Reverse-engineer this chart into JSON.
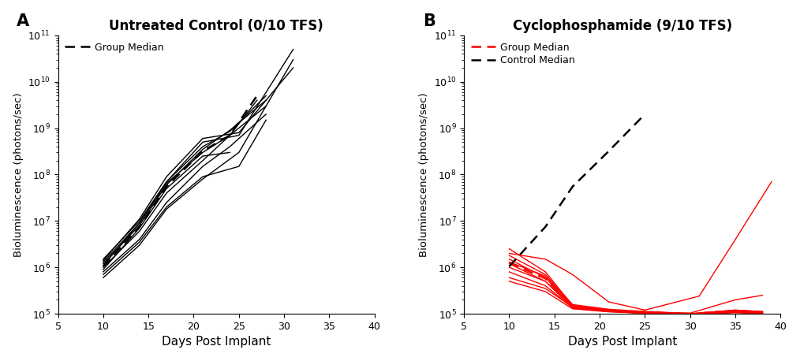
{
  "title_A": "Untreated Control (0/10 TFS)",
  "title_B": "Cyclophosphamide (9/10 TFS)",
  "xlabel": "Days Post Implant",
  "ylabel": "Bioluminescence (photons/sec)",
  "xlim": [
    5,
    40
  ],
  "ylim_log": [
    5,
    11
  ],
  "label_A": "A",
  "label_B": "B",
  "untreated_mice": [
    {
      "x": [
        10,
        14,
        17,
        21,
        24,
        28
      ],
      "y": [
        1200000,
        8000000,
        60000000,
        350000000,
        900000000,
        4000000000
      ]
    },
    {
      "x": [
        10,
        14,
        17,
        21,
        24,
        28
      ],
      "y": [
        1000000,
        6000000,
        40000000,
        200000000,
        700000000,
        3000000000
      ]
    },
    {
      "x": [
        10,
        14,
        17,
        21,
        24,
        28
      ],
      "y": [
        800000,
        4000000,
        25000000,
        150000000,
        400000000,
        2000000000
      ]
    },
    {
      "x": [
        10,
        14,
        17,
        21,
        24,
        28
      ],
      "y": [
        1500000,
        10000000,
        70000000,
        400000000,
        850000000,
        5000000000
      ]
    },
    {
      "x": [
        10,
        14,
        17,
        21,
        24
      ],
      "y": [
        900000,
        7000000,
        50000000,
        250000000,
        300000000
      ]
    },
    {
      "x": [
        10,
        14,
        17,
        21,
        24,
        27
      ],
      "y": [
        1300000,
        9000000,
        65000000,
        300000000,
        700000000,
        4000000000
      ]
    },
    {
      "x": [
        10,
        14,
        17,
        21,
        25,
        28
      ],
      "y": [
        700000,
        3500000,
        20000000,
        90000000,
        150000000,
        1500000000
      ]
    },
    {
      "x": [
        10,
        14,
        17,
        21,
        25,
        31
      ],
      "y": [
        600000,
        3000000,
        18000000,
        80000000,
        300000000,
        30000000000
      ]
    },
    {
      "x": [
        10,
        14,
        17,
        21,
        25,
        31
      ],
      "y": [
        1100000,
        9000000,
        70000000,
        500000000,
        700000000,
        50000000000
      ]
    },
    {
      "x": [
        10,
        14,
        17,
        21,
        25,
        31
      ],
      "y": [
        1400000,
        11000000,
        90000000,
        600000000,
        800000000,
        20000000000
      ]
    }
  ],
  "untreated_median": {
    "x": [
      10,
      14,
      17,
      21,
      24,
      27
    ],
    "y": [
      1050000,
      7500000,
      55000000,
      320000000,
      700000000,
      5000000000
    ]
  },
  "cyc_mice": [
    {
      "x": [
        10,
        14,
        17,
        21,
        25,
        30,
        35,
        38
      ],
      "y": [
        2500000,
        800000,
        150000,
        120000,
        110000,
        100000,
        120000,
        110000
      ]
    },
    {
      "x": [
        10,
        14,
        17,
        21,
        25,
        30,
        35,
        38
      ],
      "y": [
        1500000,
        600000,
        140000,
        115000,
        105000,
        98000,
        110000,
        105000
      ]
    },
    {
      "x": [
        10,
        14,
        17,
        21,
        25,
        30,
        35,
        38
      ],
      "y": [
        1200000,
        500000,
        130000,
        112000,
        102000,
        97000,
        105000,
        100000
      ]
    },
    {
      "x": [
        10,
        14,
        17,
        21,
        25,
        30,
        35,
        38
      ],
      "y": [
        800000,
        400000,
        135000,
        112000,
        103000,
        96000,
        108000,
        103000
      ]
    },
    {
      "x": [
        10,
        14,
        17,
        21,
        25,
        30,
        35,
        38
      ],
      "y": [
        600000,
        350000,
        140000,
        118000,
        108000,
        100000,
        112000,
        107000
      ]
    },
    {
      "x": [
        10,
        14,
        17,
        21,
        25,
        30,
        35,
        38
      ],
      "y": [
        1000000,
        500000,
        148000,
        120000,
        110000,
        100000,
        115000,
        110000
      ]
    },
    {
      "x": [
        10,
        14,
        17,
        21,
        25,
        30,
        35,
        38
      ],
      "y": [
        1800000,
        700000,
        158000,
        125000,
        112000,
        100000,
        120000,
        112000
      ]
    },
    {
      "x": [
        10,
        14,
        17,
        21,
        25,
        30,
        35,
        38
      ],
      "y": [
        1300000,
        650000,
        150000,
        118000,
        110000,
        103000,
        200000,
        250000
      ]
    },
    {
      "x": [
        10,
        14,
        17,
        21,
        25,
        30,
        35,
        38
      ],
      "y": [
        500000,
        300000,
        128000,
        110000,
        103000,
        97000,
        110000,
        100000
      ]
    },
    {
      "x": [
        10,
        14,
        17,
        21,
        25,
        31,
        35,
        39
      ],
      "y": [
        2000000,
        1500000,
        700000,
        180000,
        120000,
        240000,
        4000000,
        70000000
      ]
    }
  ],
  "cyc_median": {
    "x": [
      10,
      14,
      17,
      21,
      25,
      30,
      35,
      38
    ],
    "y": [
      1250000,
      575000,
      143000,
      116000,
      107000,
      100000,
      115000,
      108000
    ]
  },
  "control_median_in_B": {
    "x": [
      10,
      14,
      17,
      21,
      25
    ],
    "y": [
      1050000,
      7500000,
      55000000,
      320000000,
      2000000000
    ]
  }
}
